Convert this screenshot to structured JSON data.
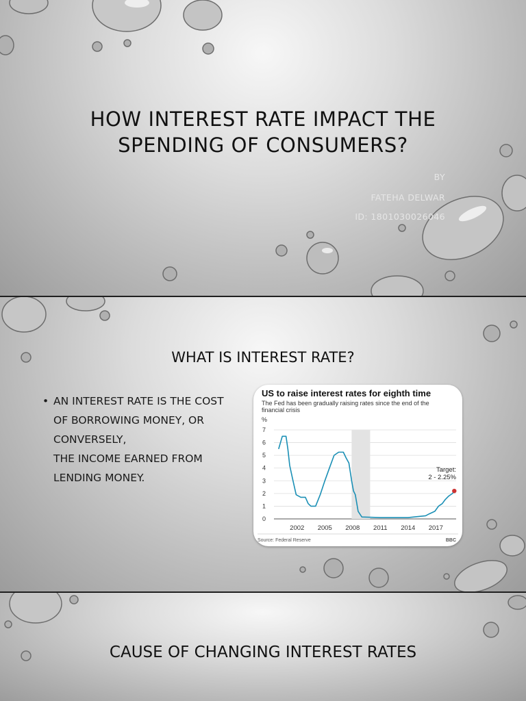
{
  "slide1": {
    "title_line1": "HOW INTEREST RATE IMPACT THE",
    "title_line2": "SPENDING OF CONSUMERS?",
    "by": "BY",
    "author": "FATEHA DELWAR",
    "id": "ID: 1801030026046"
  },
  "slide2": {
    "heading": "WHAT IS INTEREST RATE?",
    "bullet": "AN INTEREST RATE IS THE COST\nOF BORROWING MONEY, OR\nCONVERSELY,\nTHE INCOME EARNED FROM\nLENDING MONEY."
  },
  "slide3": {
    "heading": "CAUSE OF CHANGING INTEREST RATES"
  },
  "chart_data": {
    "type": "line",
    "title": "US to raise interest rates for eighth time",
    "subtitle_line1": "The Fed has been gradually raising rates since the end of the",
    "subtitle_line2": "financial crisis",
    "ylabel": "%",
    "ylim": [
      0,
      7
    ],
    "xlim": [
      1999.5,
      2019.2
    ],
    "yticks": [
      "0",
      "1",
      "2",
      "3",
      "4",
      "5",
      "6",
      "7"
    ],
    "xticks": [
      "2002",
      "2005",
      "2008",
      "2011",
      "2014",
      "2017"
    ],
    "shaded_period": [
      2007.9,
      2009.9
    ],
    "annotation_line1": "Target:",
    "annotation_line2": "2 - 2.25%",
    "source": "Source: Federal Reserve",
    "logo": "BBC",
    "line_color": "#1a8fb5",
    "point_color": "#cc3333",
    "x": [
      2000.0,
      2000.4,
      2000.8,
      2001.0,
      2001.2,
      2001.5,
      2001.9,
      2002.4,
      2002.9,
      2003.2,
      2003.5,
      2004.0,
      2004.5,
      2005.0,
      2005.5,
      2006.0,
      2006.5,
      2007.0,
      2007.3,
      2007.6,
      2007.9,
      2008.1,
      2008.3,
      2008.6,
      2009.0,
      2011.0,
      2014.0,
      2015.9,
      2016.3,
      2016.9,
      2017.3,
      2017.7,
      2018.0,
      2018.4,
      2018.8,
      2019.0
    ],
    "y": [
      5.5,
      6.5,
      6.5,
      5.5,
      4.2,
      3.2,
      1.9,
      1.7,
      1.7,
      1.2,
      1.0,
      1.0,
      1.9,
      3.0,
      4.0,
      5.0,
      5.25,
      5.25,
      4.8,
      4.4,
      3.0,
      2.2,
      1.9,
      0.6,
      0.15,
      0.1,
      0.1,
      0.25,
      0.4,
      0.6,
      1.0,
      1.2,
      1.5,
      1.8,
      2.0,
      2.2
    ]
  }
}
